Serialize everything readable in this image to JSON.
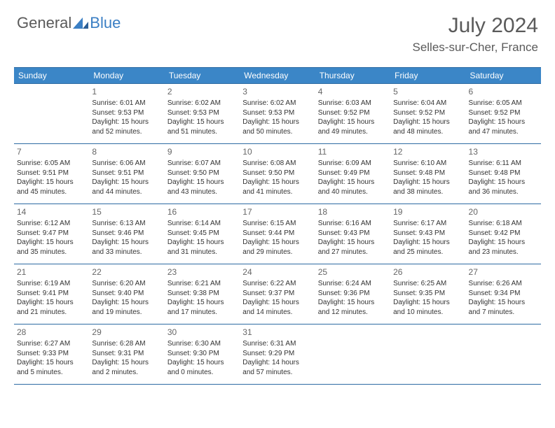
{
  "brand": {
    "part1": "General",
    "part2": "Blue"
  },
  "title": "July 2024",
  "location": "Selles-sur-Cher, France",
  "colors": {
    "header_bg": "#3b86c7",
    "header_border": "#2d6ba3",
    "brand_blue": "#3b7fc4",
    "text_gray": "#5a5a5a"
  },
  "weekdays": [
    "Sunday",
    "Monday",
    "Tuesday",
    "Wednesday",
    "Thursday",
    "Friday",
    "Saturday"
  ],
  "weeks": [
    [
      null,
      {
        "d": "1",
        "sr": "6:01 AM",
        "ss": "9:53 PM",
        "dl": "15 hours and 52 minutes."
      },
      {
        "d": "2",
        "sr": "6:02 AM",
        "ss": "9:53 PM",
        "dl": "15 hours and 51 minutes."
      },
      {
        "d": "3",
        "sr": "6:02 AM",
        "ss": "9:53 PM",
        "dl": "15 hours and 50 minutes."
      },
      {
        "d": "4",
        "sr": "6:03 AM",
        "ss": "9:52 PM",
        "dl": "15 hours and 49 minutes."
      },
      {
        "d": "5",
        "sr": "6:04 AM",
        "ss": "9:52 PM",
        "dl": "15 hours and 48 minutes."
      },
      {
        "d": "6",
        "sr": "6:05 AM",
        "ss": "9:52 PM",
        "dl": "15 hours and 47 minutes."
      }
    ],
    [
      {
        "d": "7",
        "sr": "6:05 AM",
        "ss": "9:51 PM",
        "dl": "15 hours and 45 minutes."
      },
      {
        "d": "8",
        "sr": "6:06 AM",
        "ss": "9:51 PM",
        "dl": "15 hours and 44 minutes."
      },
      {
        "d": "9",
        "sr": "6:07 AM",
        "ss": "9:50 PM",
        "dl": "15 hours and 43 minutes."
      },
      {
        "d": "10",
        "sr": "6:08 AM",
        "ss": "9:50 PM",
        "dl": "15 hours and 41 minutes."
      },
      {
        "d": "11",
        "sr": "6:09 AM",
        "ss": "9:49 PM",
        "dl": "15 hours and 40 minutes."
      },
      {
        "d": "12",
        "sr": "6:10 AM",
        "ss": "9:48 PM",
        "dl": "15 hours and 38 minutes."
      },
      {
        "d": "13",
        "sr": "6:11 AM",
        "ss": "9:48 PM",
        "dl": "15 hours and 36 minutes."
      }
    ],
    [
      {
        "d": "14",
        "sr": "6:12 AM",
        "ss": "9:47 PM",
        "dl": "15 hours and 35 minutes."
      },
      {
        "d": "15",
        "sr": "6:13 AM",
        "ss": "9:46 PM",
        "dl": "15 hours and 33 minutes."
      },
      {
        "d": "16",
        "sr": "6:14 AM",
        "ss": "9:45 PM",
        "dl": "15 hours and 31 minutes."
      },
      {
        "d": "17",
        "sr": "6:15 AM",
        "ss": "9:44 PM",
        "dl": "15 hours and 29 minutes."
      },
      {
        "d": "18",
        "sr": "6:16 AM",
        "ss": "9:43 PM",
        "dl": "15 hours and 27 minutes."
      },
      {
        "d": "19",
        "sr": "6:17 AM",
        "ss": "9:43 PM",
        "dl": "15 hours and 25 minutes."
      },
      {
        "d": "20",
        "sr": "6:18 AM",
        "ss": "9:42 PM",
        "dl": "15 hours and 23 minutes."
      }
    ],
    [
      {
        "d": "21",
        "sr": "6:19 AM",
        "ss": "9:41 PM",
        "dl": "15 hours and 21 minutes."
      },
      {
        "d": "22",
        "sr": "6:20 AM",
        "ss": "9:40 PM",
        "dl": "15 hours and 19 minutes."
      },
      {
        "d": "23",
        "sr": "6:21 AM",
        "ss": "9:38 PM",
        "dl": "15 hours and 17 minutes."
      },
      {
        "d": "24",
        "sr": "6:22 AM",
        "ss": "9:37 PM",
        "dl": "15 hours and 14 minutes."
      },
      {
        "d": "25",
        "sr": "6:24 AM",
        "ss": "9:36 PM",
        "dl": "15 hours and 12 minutes."
      },
      {
        "d": "26",
        "sr": "6:25 AM",
        "ss": "9:35 PM",
        "dl": "15 hours and 10 minutes."
      },
      {
        "d": "27",
        "sr": "6:26 AM",
        "ss": "9:34 PM",
        "dl": "15 hours and 7 minutes."
      }
    ],
    [
      {
        "d": "28",
        "sr": "6:27 AM",
        "ss": "9:33 PM",
        "dl": "15 hours and 5 minutes."
      },
      {
        "d": "29",
        "sr": "6:28 AM",
        "ss": "9:31 PM",
        "dl": "15 hours and 2 minutes."
      },
      {
        "d": "30",
        "sr": "6:30 AM",
        "ss": "9:30 PM",
        "dl": "15 hours and 0 minutes."
      },
      {
        "d": "31",
        "sr": "6:31 AM",
        "ss": "9:29 PM",
        "dl": "14 hours and 57 minutes."
      },
      null,
      null,
      null
    ]
  ],
  "labels": {
    "sunrise": "Sunrise:",
    "sunset": "Sunset:",
    "daylight": "Daylight:"
  }
}
